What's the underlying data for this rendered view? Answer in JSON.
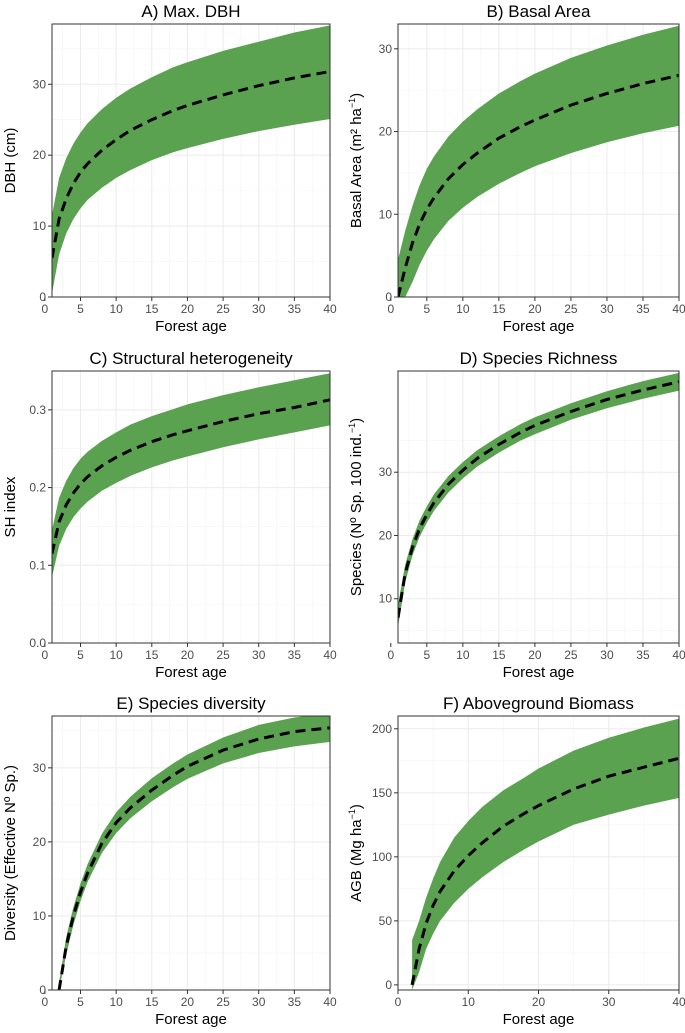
{
  "colors": {
    "band": "#5aa150",
    "line": "#000000",
    "panel_border": "#333333",
    "grid_major": "#ebebeb",
    "grid_minor": "#f4f4f4",
    "tick_text": "#4d4d4d"
  },
  "chart_data": [
    {
      "type": "line",
      "title": "A) Max. DBH",
      "xlabel": "Forest age",
      "ylabel": "DBH (cm)",
      "xlim": [
        1,
        40
      ],
      "ylim": [
        0,
        38.5
      ],
      "xticks": [
        0,
        5,
        10,
        15,
        20,
        25,
        30,
        35,
        40
      ],
      "yticks": [
        0,
        10,
        20,
        30
      ],
      "x": [
        1,
        2,
        3,
        4,
        5,
        6,
        8,
        10,
        12,
        15,
        18,
        20,
        25,
        30,
        35,
        40
      ],
      "fit": [
        5.5,
        11.0,
        13.9,
        16.0,
        17.6,
        18.8,
        20.7,
        22.2,
        23.5,
        25.0,
        26.3,
        27.0,
        28.5,
        29.8,
        30.9,
        31.8
      ],
      "lower": [
        0.5,
        6.0,
        9.0,
        11.0,
        12.5,
        13.7,
        15.4,
        16.8,
        17.9,
        19.3,
        20.4,
        21.0,
        22.3,
        23.4,
        24.3,
        25.1
      ],
      "upper": [
        11.5,
        16.8,
        19.6,
        21.6,
        23.2,
        24.5,
        26.5,
        28.1,
        29.4,
        31.0,
        32.4,
        33.1,
        34.7,
        36.0,
        37.3,
        38.3
      ]
    },
    {
      "type": "line",
      "title": "B) Basal Area",
      "xlabel": "Forest age",
      "ylabel_main": "Basal Area (m² ha",
      "ylabel_sup": "−1",
      "ylabel_close": ")",
      "xlim": [
        1,
        40
      ],
      "ylim": [
        0,
        33
      ],
      "xticks": [
        0,
        5,
        10,
        15,
        20,
        25,
        30,
        35,
        40
      ],
      "yticks": [
        0,
        10,
        20,
        30
      ],
      "x": [
        1,
        2,
        3,
        4,
        5,
        6,
        8,
        10,
        12,
        15,
        18,
        20,
        25,
        30,
        35,
        40
      ],
      "fit": [
        0.0,
        3.5,
        6.5,
        8.8,
        10.6,
        12.0,
        14.3,
        16.0,
        17.4,
        19.2,
        20.6,
        21.4,
        23.2,
        24.6,
        25.8,
        26.8
      ],
      "lower": [
        0.0,
        0.0,
        1.8,
        3.9,
        5.6,
        7.0,
        9.2,
        10.8,
        12.1,
        13.7,
        15.0,
        15.8,
        17.4,
        18.7,
        19.8,
        20.7
      ],
      "upper": [
        4.5,
        8.0,
        11.0,
        13.5,
        15.5,
        17.0,
        19.4,
        21.2,
        22.7,
        24.6,
        26.1,
        27.0,
        28.9,
        30.4,
        31.7,
        32.8
      ]
    },
    {
      "type": "line",
      "title": "C) Structural heterogeneity",
      "xlabel": "Forest age",
      "ylabel": "SH index",
      "xlim": [
        1,
        40
      ],
      "ylim": [
        0,
        0.35
      ],
      "xticks": [
        0,
        5,
        10,
        15,
        20,
        25,
        30,
        35,
        40
      ],
      "yticks": [
        0.0,
        0.1,
        0.2,
        0.3
      ],
      "yticklabels": [
        "0.0",
        "0.1",
        "0.2",
        "0.3"
      ],
      "x": [
        1,
        2,
        3,
        4,
        5,
        6,
        8,
        10,
        12,
        15,
        18,
        20,
        25,
        30,
        35,
        40
      ],
      "fit": [
        0.115,
        0.156,
        0.178,
        0.193,
        0.205,
        0.214,
        0.228,
        0.239,
        0.248,
        0.259,
        0.268,
        0.273,
        0.285,
        0.295,
        0.303,
        0.313
      ],
      "lower": [
        0.085,
        0.125,
        0.147,
        0.162,
        0.173,
        0.182,
        0.196,
        0.206,
        0.215,
        0.226,
        0.235,
        0.24,
        0.252,
        0.262,
        0.271,
        0.28
      ],
      "upper": [
        0.145,
        0.187,
        0.209,
        0.225,
        0.237,
        0.246,
        0.26,
        0.271,
        0.281,
        0.292,
        0.301,
        0.307,
        0.319,
        0.329,
        0.338,
        0.347
      ]
    },
    {
      "type": "line",
      "title": "D) Species Richness",
      "xlabel": "Forest age",
      "ylabel_main": "Species  (Nº Sp. 100 ind.",
      "ylabel_sup": "−1",
      "ylabel_close": ")",
      "xlim": [
        1,
        40
      ],
      "ylim": [
        3,
        46
      ],
      "xticks": [
        0,
        5,
        10,
        15,
        20,
        25,
        30,
        35,
        40
      ],
      "yticks": [
        10,
        20,
        30
      ],
      "x": [
        1,
        2,
        3,
        4,
        5,
        6,
        8,
        10,
        12,
        15,
        18,
        20,
        25,
        30,
        35,
        40
      ],
      "fit": [
        7.0,
        14.0,
        18.1,
        21.1,
        23.3,
        25.2,
        28.1,
        30.3,
        32.2,
        34.4,
        36.3,
        37.4,
        39.6,
        41.5,
        43.0,
        44.3
      ],
      "lower": [
        5.5,
        12.6,
        16.8,
        19.8,
        22.0,
        23.9,
        26.8,
        29.0,
        30.9,
        33.1,
        35.0,
        36.0,
        38.3,
        40.1,
        41.6,
        42.9
      ],
      "upper": [
        9.0,
        15.4,
        19.4,
        22.4,
        24.6,
        26.5,
        29.4,
        31.6,
        33.5,
        35.7,
        37.6,
        38.7,
        40.9,
        42.8,
        44.4,
        45.7
      ]
    },
    {
      "type": "line",
      "title": "E) Species diversity",
      "xlabel": "Forest age",
      "ylabel": "Diversity (Effective Nº Sp.)",
      "xlim": [
        1,
        40
      ],
      "ylim": [
        0,
        37
      ],
      "xticks": [
        0,
        5,
        10,
        15,
        20,
        25,
        30,
        35,
        40
      ],
      "yticks": [
        0,
        10,
        20,
        30
      ],
      "x": [
        2,
        3,
        4,
        5,
        6,
        8,
        10,
        12,
        15,
        18,
        20,
        25,
        30,
        35,
        40
      ],
      "fit": [
        0.0,
        6.0,
        10.0,
        13.2,
        15.8,
        19.8,
        22.6,
        24.6,
        27.0,
        29.0,
        30.2,
        32.4,
        33.9,
        34.9,
        35.4
      ],
      "lower": [
        0.0,
        4.8,
        8.8,
        12.0,
        14.6,
        18.5,
        21.2,
        23.2,
        25.5,
        27.4,
        28.5,
        30.6,
        32.0,
        32.9,
        33.5
      ],
      "upper": [
        1.0,
        7.2,
        11.2,
        14.4,
        17.0,
        21.1,
        24.0,
        26.1,
        28.6,
        30.6,
        31.8,
        34.1,
        35.8,
        36.8,
        37.4
      ]
    },
    {
      "type": "line",
      "title": "F) Aboveground Biomass",
      "xlabel": "Forest age",
      "ylabel_main": "AGB (Mg ha",
      "ylabel_sup": "−1",
      "ylabel_close": ")",
      "xlim": [
        0,
        40
      ],
      "ylim": [
        -4,
        210
      ],
      "xticks": [
        0,
        10,
        20,
        30,
        40
      ],
      "yticks": [
        0,
        50,
        100,
        150,
        200
      ],
      "x": [
        2,
        3,
        4,
        5,
        6,
        8,
        10,
        12,
        15,
        18,
        20,
        25,
        30,
        35,
        40
      ],
      "fit": [
        0,
        28,
        48,
        62,
        73,
        89,
        101,
        111,
        124,
        134,
        140,
        153,
        163,
        170,
        177
      ],
      "lower": [
        -4,
        10,
        28,
        40,
        50,
        64,
        75,
        84,
        96,
        106,
        112,
        125,
        133,
        140,
        146
      ],
      "upper": [
        35,
        50,
        68,
        83,
        96,
        115,
        128,
        139,
        152,
        162,
        169,
        183,
        193,
        201,
        208
      ]
    }
  ]
}
